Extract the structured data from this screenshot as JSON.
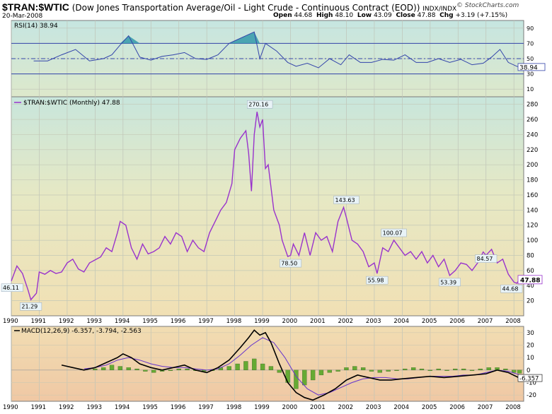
{
  "header": {
    "symbol": "$TRAN:$WTIC",
    "description": "(Dow Jones Transportation Average/Oil - Light Crude - Continuous Contract (EOD))",
    "exchange": "INDX/INDX",
    "date": "20-Mar-2008",
    "open_label": "Open",
    "open": "44.68",
    "high_label": "High",
    "high": "48.10",
    "low_label": "Low",
    "low": "43.09",
    "close_label": "Close",
    "close": "47.88",
    "chg_label": "Chg",
    "chg": "+3.19 (+7.15%)",
    "logo": "© StockCharts.com"
  },
  "colors": {
    "price_line": "#9933cc",
    "rsi_line": "#3344aa",
    "rsi_fill": "#3399aa",
    "macd_line": "#000000",
    "signal_line": "#6633cc",
    "histogram": "#66aa33"
  },
  "chart_data": [
    {
      "type": "line",
      "name": "rsi-panel",
      "title": "RSI(14) 38.94",
      "ylim": [
        0,
        100
      ],
      "yticks": [
        10,
        30,
        50,
        70,
        90
      ],
      "reference_lines": [
        30,
        50,
        70
      ],
      "last_value_label": "38.94",
      "series": [
        {
          "name": "RSI(14)",
          "x": [
            1990.8,
            1991.3,
            1991.8,
            1992.3,
            1992.8,
            1993.3,
            1993.6,
            1993.9,
            1994.2,
            1994.6,
            1995.0,
            1995.4,
            1995.8,
            1996.2,
            1996.6,
            1997.0,
            1997.4,
            1997.8,
            1998.1,
            1998.4,
            1998.7,
            1998.9,
            1999.1,
            1999.5,
            1999.9,
            2000.2,
            2000.6,
            2001.0,
            2001.4,
            2001.8,
            2002.1,
            2002.5,
            2002.9,
            2003.3,
            2003.7,
            2004.1,
            2004.5,
            2004.9,
            2005.3,
            2005.7,
            2006.1,
            2006.5,
            2006.9,
            2007.2,
            2007.5,
            2007.8,
            2008.1,
            2008.2
          ],
          "values": [
            47,
            47,
            55,
            62,
            47,
            50,
            55,
            68,
            80,
            52,
            48,
            53,
            55,
            58,
            50,
            49,
            55,
            70,
            75,
            80,
            85,
            50,
            70,
            60,
            45,
            40,
            44,
            38,
            50,
            42,
            55,
            45,
            45,
            49,
            48,
            55,
            45,
            45,
            50,
            45,
            49,
            42,
            44,
            52,
            62,
            45,
            40,
            39
          ]
        }
      ]
    },
    {
      "type": "line",
      "name": "price-panel",
      "title": "$TRAN:$WTIC (Monthly) 47.88",
      "ylim": [
        0,
        290
      ],
      "yticks": [
        20,
        40,
        60,
        80,
        100,
        120,
        140,
        160,
        180,
        200,
        220,
        240,
        260,
        280
      ],
      "xticks": [
        "1990",
        "1991",
        "1992",
        "1993",
        "1994",
        "1995",
        "1996",
        "1997",
        "1998",
        "1999",
        "2000",
        "2001",
        "2002",
        "2003",
        "2004",
        "2005",
        "2006",
        "2007",
        "2008"
      ],
      "last_value_label": "47.88",
      "annotations": [
        {
          "x": 1990.0,
          "y": 46.11,
          "text": "46.11"
        },
        {
          "x": 1990.7,
          "y": 21.29,
          "text": "21.29"
        },
        {
          "x": 1998.9,
          "y": 270.16,
          "text": "270.16"
        },
        {
          "x": 2000.0,
          "y": 78.5,
          "text": "78.50"
        },
        {
          "x": 2002.0,
          "y": 143.63,
          "text": "143.63"
        },
        {
          "x": 2003.1,
          "y": 55.98,
          "text": "55.98"
        },
        {
          "x": 2003.7,
          "y": 100.07,
          "text": "100.07"
        },
        {
          "x": 2005.7,
          "y": 53.39,
          "text": "53.39"
        },
        {
          "x": 2007.0,
          "y": 84.57,
          "text": "84.57"
        },
        {
          "x": 2008.0,
          "y": 44.68,
          "text": "44.68"
        }
      ],
      "series": [
        {
          "name": "$TRAN:$WTIC (Monthly)",
          "x": [
            1990.0,
            1990.2,
            1990.4,
            1990.6,
            1990.7,
            1990.9,
            1991.0,
            1991.2,
            1991.4,
            1991.6,
            1991.8,
            1992.0,
            1992.2,
            1992.4,
            1992.6,
            1992.8,
            1993.0,
            1993.2,
            1993.4,
            1993.6,
            1993.8,
            1993.9,
            1994.1,
            1994.3,
            1994.5,
            1994.7,
            1994.9,
            1995.1,
            1995.3,
            1995.5,
            1995.7,
            1995.9,
            1996.1,
            1996.3,
            1996.5,
            1996.7,
            1996.9,
            1997.1,
            1997.3,
            1997.5,
            1997.7,
            1997.9,
            1998.0,
            1998.2,
            1998.4,
            1998.5,
            1998.6,
            1998.7,
            1998.8,
            1998.9,
            1999.0,
            1999.1,
            1999.2,
            1999.4,
            1999.6,
            1999.7,
            1999.9,
            2000.0,
            2000.1,
            2000.3,
            2000.5,
            2000.7,
            2000.9,
            2001.1,
            2001.3,
            2001.5,
            2001.7,
            2001.9,
            2002.0,
            2002.2,
            2002.4,
            2002.6,
            2002.8,
            2003.0,
            2003.1,
            2003.3,
            2003.5,
            2003.7,
            2003.9,
            2004.1,
            2004.3,
            2004.5,
            2004.7,
            2004.9,
            2005.1,
            2005.3,
            2005.5,
            2005.7,
            2005.9,
            2006.1,
            2006.3,
            2006.5,
            2006.7,
            2006.9,
            2007.0,
            2007.2,
            2007.4,
            2007.6,
            2007.8,
            2008.0,
            2008.1,
            2008.2
          ],
          "values": [
            46.11,
            66,
            56,
            34,
            21.29,
            30,
            58,
            55,
            60,
            56,
            58,
            70,
            75,
            62,
            58,
            70,
            74,
            78,
            90,
            85,
            110,
            125,
            120,
            90,
            75,
            95,
            82,
            85,
            90,
            105,
            95,
            110,
            105,
            85,
            100,
            90,
            85,
            110,
            125,
            140,
            150,
            175,
            220,
            235,
            245,
            215,
            165,
            240,
            270.16,
            250,
            260,
            195,
            200,
            140,
            120,
            100,
            78.5,
            80,
            95,
            80,
            110,
            80,
            110,
            100,
            105,
            85,
            125,
            143.63,
            130,
            100,
            95,
            85,
            65,
            70,
            55.98,
            90,
            85,
            100.07,
            90,
            80,
            85,
            75,
            85,
            70,
            80,
            65,
            75,
            53.39,
            60,
            70,
            68,
            60,
            70,
            84.57,
            80,
            88,
            70,
            75,
            55,
            44.68,
            43,
            47.88
          ]
        }
      ]
    },
    {
      "type": "line",
      "name": "macd-panel",
      "title": "MACD(12,26,9) -6.357, -3.794, -2.563",
      "ylim": [
        -25,
        35
      ],
      "yticks": [
        -20,
        -10,
        0,
        10,
        20,
        30
      ],
      "last_value_label": "-6.357",
      "series": [
        {
          "name": "MACD",
          "x": [
            1991.8,
            1992.2,
            1992.6,
            1993.0,
            1993.4,
            1993.8,
            1994.0,
            1994.3,
            1994.6,
            1995.0,
            1995.4,
            1995.8,
            1996.2,
            1996.6,
            1997.0,
            1997.4,
            1997.8,
            1998.2,
            1998.5,
            1998.7,
            1998.9,
            1999.1,
            1999.3,
            1999.6,
            1999.9,
            2000.2,
            2000.5,
            2000.8,
            2001.2,
            2001.6,
            2002.0,
            2002.4,
            2002.8,
            2003.2,
            2003.6,
            2004.0,
            2004.5,
            2005.0,
            2005.5,
            2006.0,
            2006.5,
            2007.0,
            2007.4,
            2007.8,
            2008.2
          ],
          "values": [
            4,
            2,
            0,
            2,
            6,
            10,
            13,
            10,
            5,
            2,
            0,
            2,
            4,
            0,
            -2,
            2,
            8,
            18,
            26,
            32,
            28,
            30,
            22,
            5,
            -10,
            -18,
            -22,
            -24,
            -20,
            -15,
            -8,
            -4,
            -6,
            -8,
            -8,
            -7,
            -6,
            -5,
            -6,
            -5,
            -4,
            -3,
            0,
            -2,
            -6.357
          ]
        },
        {
          "name": "Signal",
          "x": [
            1992.6,
            1993.0,
            1993.4,
            1993.8,
            1994.2,
            1994.6,
            1995.0,
            1995.4,
            1995.8,
            1996.2,
            1996.6,
            1997.0,
            1997.4,
            1997.8,
            1998.2,
            1998.6,
            1999.0,
            1999.4,
            1999.8,
            2000.2,
            2000.6,
            2001.0,
            2001.4,
            2001.8,
            2002.2,
            2002.6,
            2003.0,
            2003.4,
            2003.8,
            2004.2,
            2004.6,
            2005.0,
            2005.4,
            2005.8,
            2006.2,
            2006.6,
            2007.0,
            2007.4,
            2007.8,
            2008.2
          ],
          "values": [
            1,
            2,
            4,
            8,
            10,
            8,
            5,
            3,
            2,
            2,
            1,
            0,
            1,
            5,
            12,
            20,
            26,
            22,
            10,
            -5,
            -15,
            -20,
            -18,
            -14,
            -10,
            -7,
            -6,
            -6,
            -7,
            -7,
            -6,
            -5,
            -5,
            -5,
            -4,
            -4,
            -2,
            0,
            -1,
            -3.794
          ]
        },
        {
          "name": "Histogram",
          "x": [
            1993.0,
            1993.3,
            1993.6,
            1993.9,
            1994.2,
            1994.5,
            1994.8,
            1995.1,
            1995.4,
            1995.7,
            1996.0,
            1996.3,
            1996.6,
            1996.9,
            1997.2,
            1997.5,
            1997.8,
            1998.1,
            1998.4,
            1998.7,
            1999.0,
            1999.3,
            1999.6,
            1999.9,
            2000.2,
            2000.5,
            2000.8,
            2001.1,
            2001.4,
            2001.7,
            2002.0,
            2002.3,
            2002.6,
            2002.9,
            2003.2,
            2003.5,
            2003.8,
            2004.1,
            2004.4,
            2004.7,
            2005.0,
            2005.3,
            2005.6,
            2005.9,
            2006.2,
            2006.5,
            2006.8,
            2007.1,
            2007.4,
            2007.7,
            2008.0,
            2008.2
          ],
          "values": [
            1,
            2,
            4,
            3,
            2,
            1,
            -1,
            -2,
            -1,
            0,
            1,
            1,
            0,
            -1,
            0,
            2,
            3,
            5,
            7,
            9,
            5,
            3,
            -2,
            -10,
            -15,
            -12,
            -8,
            -4,
            -2,
            -1,
            2,
            3,
            2,
            -1,
            -2,
            -1,
            0,
            1,
            2,
            1,
            0,
            1,
            0,
            1,
            1,
            0,
            1,
            2,
            2,
            1,
            -2,
            -2.563
          ]
        }
      ],
      "xticks": [
        "1990",
        "1991",
        "1992",
        "1993",
        "1994",
        "1995",
        "1996",
        "1997",
        "1998",
        "1999",
        "2000",
        "2001",
        "2002",
        "2003",
        "2004",
        "2005",
        "2006",
        "2007",
        "2008"
      ]
    }
  ]
}
